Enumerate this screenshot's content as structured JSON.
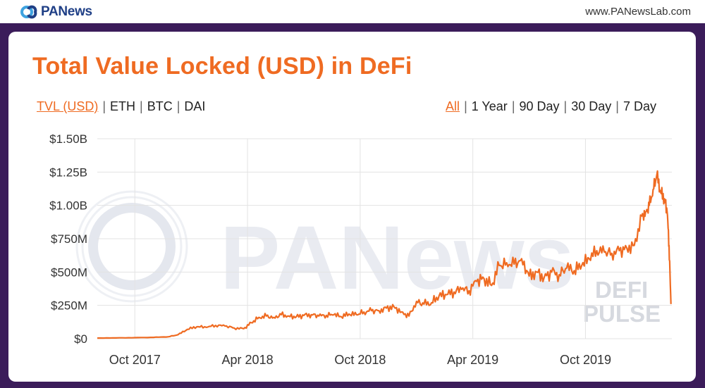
{
  "header": {
    "brand_name": "PANews",
    "brand_logo_icon": "pa-logo-icon",
    "site_url": "www.PANewsLab.com"
  },
  "card": {
    "title": "Total Value Locked (USD) in DeFi",
    "unit_options": [
      "TVL (USD)",
      "ETH",
      "BTC",
      "DAI"
    ],
    "unit_selected": "TVL (USD)",
    "range_options": [
      "All",
      "1 Year",
      "90 Day",
      "30 Day",
      "7 Day"
    ],
    "range_selected": "All",
    "watermark_main": "PANews",
    "watermark_defi": "DEFI",
    "watermark_pulse": "PULSE",
    "accent_color": "#ef6b22"
  },
  "chart_data": {
    "type": "line",
    "title": "Total Value Locked (USD) in DeFi",
    "xlabel": "",
    "ylabel": "",
    "ylim": [
      0,
      1.5
    ],
    "y_unit": "billion USD",
    "yticks": [
      {
        "value": 0,
        "label": "$0"
      },
      {
        "value": 0.25,
        "label": "$250M"
      },
      {
        "value": 0.5,
        "label": "$500M"
      },
      {
        "value": 0.75,
        "label": "$750M"
      },
      {
        "value": 1.0,
        "label": "$1.00B"
      },
      {
        "value": 1.25,
        "label": "$1.25B"
      },
      {
        "value": 1.5,
        "label": "$1.50B"
      }
    ],
    "x_unit": "months since 2017-08-01",
    "xlim": [
      0,
      30.6
    ],
    "xticks": [
      {
        "value": 2,
        "label": "Oct 2017"
      },
      {
        "value": 8,
        "label": "Apr 2018"
      },
      {
        "value": 14,
        "label": "Oct 2018"
      },
      {
        "value": 20,
        "label": "Apr 2019"
      },
      {
        "value": 26,
        "label": "Oct 2019"
      }
    ],
    "series": [
      {
        "name": "TVL (USD)",
        "color": "#ef6b22",
        "x": [
          0,
          1,
          2,
          3,
          3.8,
          4.3,
          4.8,
          5.3,
          5.8,
          6.3,
          6.8,
          7.3,
          7.8,
          8.2,
          8.6,
          9.0,
          9.4,
          9.8,
          10.2,
          10.6,
          11.0,
          11.4,
          11.8,
          12.2,
          12.6,
          13.0,
          13.4,
          13.8,
          14.2,
          14.6,
          15.0,
          15.4,
          15.8,
          16.2,
          16.6,
          17.0,
          17.4,
          17.8,
          18.2,
          18.6,
          19.0,
          19.4,
          19.8,
          20.2,
          20.6,
          21.0,
          21.4,
          21.8,
          22.2,
          22.6,
          23.0,
          23.4,
          23.8,
          24.2,
          24.6,
          25.0,
          25.4,
          25.8,
          26.2,
          26.6,
          27.0,
          27.4,
          27.8,
          28.2,
          28.6,
          29.0,
          29.2,
          29.4,
          29.6,
          29.8,
          30.0,
          30.2,
          30.35,
          30.45,
          30.55
        ],
        "values": [
          0.005,
          0.006,
          0.008,
          0.01,
          0.015,
          0.03,
          0.07,
          0.09,
          0.085,
          0.1,
          0.095,
          0.08,
          0.075,
          0.12,
          0.16,
          0.17,
          0.16,
          0.18,
          0.17,
          0.165,
          0.175,
          0.18,
          0.17,
          0.175,
          0.18,
          0.165,
          0.185,
          0.18,
          0.2,
          0.21,
          0.21,
          0.23,
          0.24,
          0.2,
          0.17,
          0.28,
          0.26,
          0.27,
          0.32,
          0.33,
          0.35,
          0.37,
          0.36,
          0.43,
          0.45,
          0.4,
          0.55,
          0.57,
          0.56,
          0.6,
          0.47,
          0.5,
          0.46,
          0.5,
          0.48,
          0.53,
          0.51,
          0.55,
          0.6,
          0.66,
          0.65,
          0.64,
          0.66,
          0.68,
          0.7,
          0.92,
          0.95,
          1.0,
          1.12,
          1.23,
          1.1,
          1.05,
          0.95,
          0.7,
          0.26
        ]
      }
    ],
    "grid": true,
    "legend": "none"
  }
}
